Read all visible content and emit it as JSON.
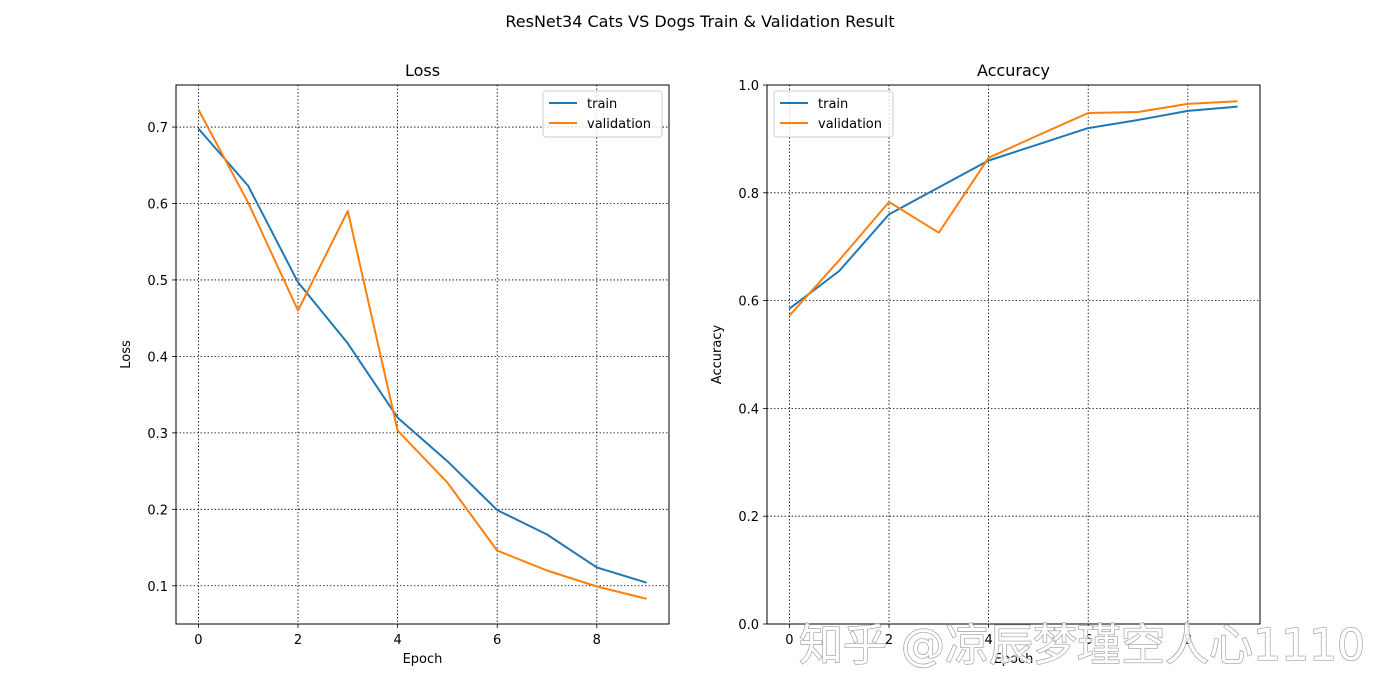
{
  "figure": {
    "suptitle": "ResNet34 Cats VS Dogs Train & Validation Result",
    "watermark": "知乎 @凉辰梦瑾空人心1110"
  },
  "colors": {
    "train": "#1f77b4",
    "validation": "#ff7f0e",
    "grid": "#000000"
  },
  "chart_data": [
    {
      "type": "line",
      "title": "Loss",
      "xlabel": "Epoch",
      "ylabel": "Loss",
      "xlim": [
        -0.45,
        9.45
      ],
      "ylim": [
        0.05,
        0.755
      ],
      "xticks": [
        0,
        2,
        4,
        6,
        8
      ],
      "xtick_labels": [
        "0",
        "2",
        "4",
        "6",
        "8"
      ],
      "yticks": [
        0.1,
        0.2,
        0.3,
        0.4,
        0.5,
        0.6,
        0.7
      ],
      "ytick_labels": [
        "0.1",
        "0.2",
        "0.3",
        "0.4",
        "0.5",
        "0.6",
        "0.7"
      ],
      "grid": true,
      "legend_position": "top-right",
      "x": [
        0,
        1,
        2,
        3,
        4,
        5,
        6,
        7,
        8,
        9
      ],
      "series": [
        {
          "name": "train",
          "values": [
            0.698,
            0.623,
            0.497,
            0.417,
            0.32,
            0.263,
            0.199,
            0.167,
            0.124,
            0.104
          ]
        },
        {
          "name": "validation",
          "values": [
            0.723,
            0.601,
            0.46,
            0.59,
            0.303,
            0.235,
            0.146,
            0.12,
            0.099,
            0.083
          ]
        }
      ]
    },
    {
      "type": "line",
      "title": "Accuracy",
      "xlabel": "Epoch",
      "ylabel": "Accuracy",
      "xlim": [
        -0.45,
        9.45
      ],
      "ylim": [
        0.0,
        1.0
      ],
      "xticks": [
        0,
        2,
        4,
        6,
        8
      ],
      "xtick_labels": [
        "0",
        "2",
        "4",
        "6",
        "8"
      ],
      "yticks": [
        0.0,
        0.2,
        0.4,
        0.6,
        0.8,
        1.0
      ],
      "ytick_labels": [
        "0.0",
        "0.2",
        "0.4",
        "0.6",
        "0.8",
        "1.0"
      ],
      "grid": true,
      "legend_position": "top-left",
      "x": [
        0,
        1,
        2,
        3,
        4,
        5,
        6,
        7,
        8,
        9
      ],
      "series": [
        {
          "name": "train",
          "values": [
            0.585,
            0.655,
            0.76,
            0.81,
            0.86,
            0.89,
            0.92,
            0.935,
            0.952,
            0.96
          ]
        },
        {
          "name": "validation",
          "values": [
            0.572,
            0.675,
            0.783,
            0.726,
            0.865,
            0.907,
            0.948,
            0.95,
            0.965,
            0.97
          ]
        }
      ]
    }
  ]
}
